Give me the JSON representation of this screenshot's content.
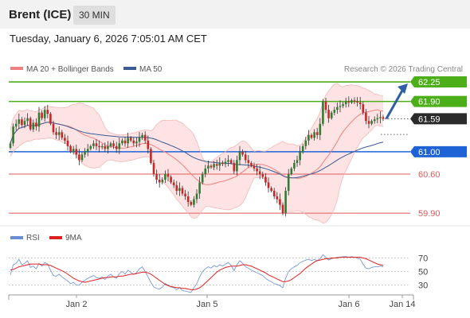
{
  "header": {
    "title": "Brent (ICE)",
    "timeframe": "30 MIN",
    "datetime": "Tuesday, January 6, 2026 7:05:01 AM CET"
  },
  "legend": {
    "ma20_label": "MA 20 + Bollinger Bands",
    "ma50_label": "MA 50",
    "copyright": "Research © 2026 Trading Central",
    "rsi_label": "RSI",
    "rsi_ma_label": "9MA"
  },
  "colors": {
    "up_candle": "#2e7d32",
    "down_candle": "#c62828",
    "ma20": "#ef8080",
    "ma50": "#3b5b93",
    "bollinger_fill": "#fde3e3",
    "resistance": "#4caf1a",
    "support_pivot": "#1e63d6",
    "support": "#e05a5a",
    "last_price": "#2b2b2b",
    "rsi": "#6a8ed6",
    "rsi_ma": "#e02020",
    "arrow": "#2f5ea5"
  },
  "chart_data": [
    {
      "type": "candlestick",
      "x_labels": [
        "Jan 2",
        "Jan 5",
        "Jan 6",
        "Jan 14"
      ],
      "ylim": [
        59.76,
        62.35
      ],
      "last_price": 61.59,
      "levels": [
        {
          "value": 62.25,
          "label": "62.25",
          "kind": "resistance"
        },
        {
          "value": 61.9,
          "label": "61.90",
          "kind": "resistance"
        },
        {
          "value": 61.59,
          "label": "61.59",
          "kind": "last"
        },
        {
          "value": 61.0,
          "label": "61.00",
          "kind": "pivot"
        },
        {
          "value": 60.6,
          "label": "60.60",
          "kind": "support"
        },
        {
          "value": 59.9,
          "label": "59.90",
          "kind": "support"
        }
      ],
      "close": [
        61.15,
        61.45,
        61.5,
        61.58,
        61.48,
        61.55,
        61.6,
        61.4,
        61.52,
        61.45,
        61.7,
        61.6,
        61.75,
        61.68,
        61.5,
        61.35,
        61.3,
        61.35,
        61.25,
        61.2,
        61.1,
        61.0,
        61.05,
        60.95,
        60.85,
        60.95,
        61.0,
        61.05,
        61.1,
        61.15,
        61.1,
        61.08,
        61.1,
        61.05,
        61.1,
        61.15,
        61.1,
        61.05,
        61.15,
        61.2,
        61.15,
        61.25,
        61.2,
        61.15,
        61.18,
        61.25,
        61.3,
        61.2,
        61.05,
        60.8,
        60.6,
        60.5,
        60.45,
        60.5,
        60.6,
        60.55,
        60.45,
        60.4,
        60.3,
        60.35,
        60.25,
        60.2,
        60.1,
        60.05,
        60.15,
        60.25,
        60.45,
        60.6,
        60.7,
        60.75,
        60.72,
        60.78,
        60.75,
        60.8,
        60.78,
        60.82,
        60.85,
        60.8,
        60.65,
        60.85,
        61.0,
        60.95,
        60.85,
        60.8,
        60.75,
        60.7,
        60.65,
        60.6,
        60.55,
        60.45,
        60.35,
        60.3,
        60.2,
        60.15,
        60.05,
        59.9,
        60.3,
        60.6,
        60.7,
        60.8,
        60.85,
        61.0,
        61.1,
        61.2,
        61.3,
        61.25,
        61.35,
        61.3,
        61.5,
        61.9,
        61.75,
        61.6,
        61.7,
        61.75,
        61.8,
        61.82,
        61.85,
        61.9,
        61.88,
        61.92,
        61.9,
        61.88,
        61.85,
        61.7,
        61.55,
        61.5,
        61.55,
        61.58,
        61.6,
        61.62,
        61.59
      ]
    },
    {
      "type": "line",
      "name": "RSI",
      "ylim": [
        0,
        100
      ],
      "ticks": [
        70,
        50,
        30
      ],
      "series": [
        {
          "name": "RSI",
          "values": [
            45,
            60,
            62,
            68,
            60,
            62,
            66,
            56,
            58,
            54,
            62,
            58,
            63,
            61,
            52,
            44,
            43,
            46,
            42,
            39,
            36,
            32,
            34,
            30,
            30,
            34,
            37,
            40,
            42,
            44,
            41,
            40,
            42,
            38,
            43,
            46,
            42,
            40,
            47,
            50,
            46,
            52,
            49,
            46,
            48,
            54,
            57,
            50,
            42,
            34,
            27,
            25,
            24,
            27,
            32,
            30,
            27,
            26,
            23,
            26,
            22,
            21,
            20,
            19,
            26,
            32,
            42,
            50,
            54,
            57,
            55,
            59,
            57,
            60,
            58,
            61,
            63,
            59,
            51,
            60,
            66,
            62,
            57,
            55,
            52,
            50,
            48,
            46,
            44,
            40,
            37,
            35,
            32,
            31,
            29,
            26,
            40,
            50,
            54,
            57,
            59,
            63,
            65,
            67,
            68,
            66,
            68,
            66,
            69,
            75,
            71,
            67,
            69,
            70,
            71,
            71,
            72,
            72,
            71,
            72,
            71,
            70,
            68,
            61,
            55,
            54,
            56,
            57,
            57,
            58,
            57
          ]
        },
        {
          "name": "9MA",
          "values": [
            52,
            53,
            55,
            57,
            58,
            59,
            60,
            61,
            61,
            61,
            61,
            60,
            60,
            60,
            59,
            57,
            55,
            53,
            51,
            49,
            46,
            43,
            40,
            38,
            36,
            35,
            34,
            35,
            36,
            37,
            38,
            39,
            40,
            41,
            41,
            42,
            42,
            42,
            43,
            43,
            44,
            45,
            46,
            46,
            47,
            48,
            49,
            49,
            48,
            46,
            43,
            40,
            37,
            34,
            31,
            29,
            28,
            27,
            26,
            26,
            25,
            25,
            24,
            23,
            23,
            24,
            26,
            29,
            33,
            37,
            41,
            45,
            49,
            52,
            54,
            56,
            57,
            58,
            58,
            58,
            59,
            60,
            60,
            59,
            58,
            56,
            54,
            52,
            50,
            48,
            45,
            43,
            41,
            39,
            37,
            35,
            35,
            36,
            38,
            41,
            44,
            47,
            51,
            55,
            58,
            61,
            64,
            66,
            67,
            68,
            69,
            69,
            70,
            70,
            70,
            71,
            71,
            71,
            71,
            71,
            71,
            71,
            71,
            70,
            69,
            67,
            65,
            63,
            61,
            60,
            59
          ]
        }
      ]
    }
  ]
}
